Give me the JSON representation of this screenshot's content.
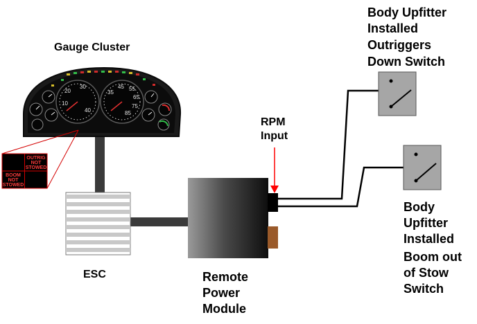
{
  "labels": {
    "gauge_cluster": "Gauge Cluster",
    "esc": "ESC",
    "rpm_input": [
      "RPM",
      "Input"
    ],
    "remote_power_module": [
      "Remote",
      "Power",
      "Module"
    ],
    "outriggers_switch": [
      "Body Upfitter",
      "Installed",
      "Outriggers",
      "Down Switch"
    ],
    "boom_switch": [
      "Body",
      "Upfitter",
      "Installed",
      "Boom out",
      "of Stow",
      "Switch"
    ]
  },
  "warning_panel": {
    "cell_top_right": [
      "OUTRIG",
      "NOT",
      "STOWED"
    ],
    "cell_bottom_left": [
      "BOOM",
      "NOT",
      "STOWED"
    ]
  },
  "gauge_numbers": {
    "speedo": [
      "10",
      "20",
      "30",
      "40"
    ],
    "tach": [
      "35",
      "45",
      "55",
      "65",
      "75",
      "85"
    ]
  },
  "colors": {
    "arrow": "#ff0000",
    "warning_text": "#ff3b3b",
    "connector_brown": "#9a5a2a",
    "switch_box": "#a6a6a6",
    "callout_lines": "#d40000"
  }
}
